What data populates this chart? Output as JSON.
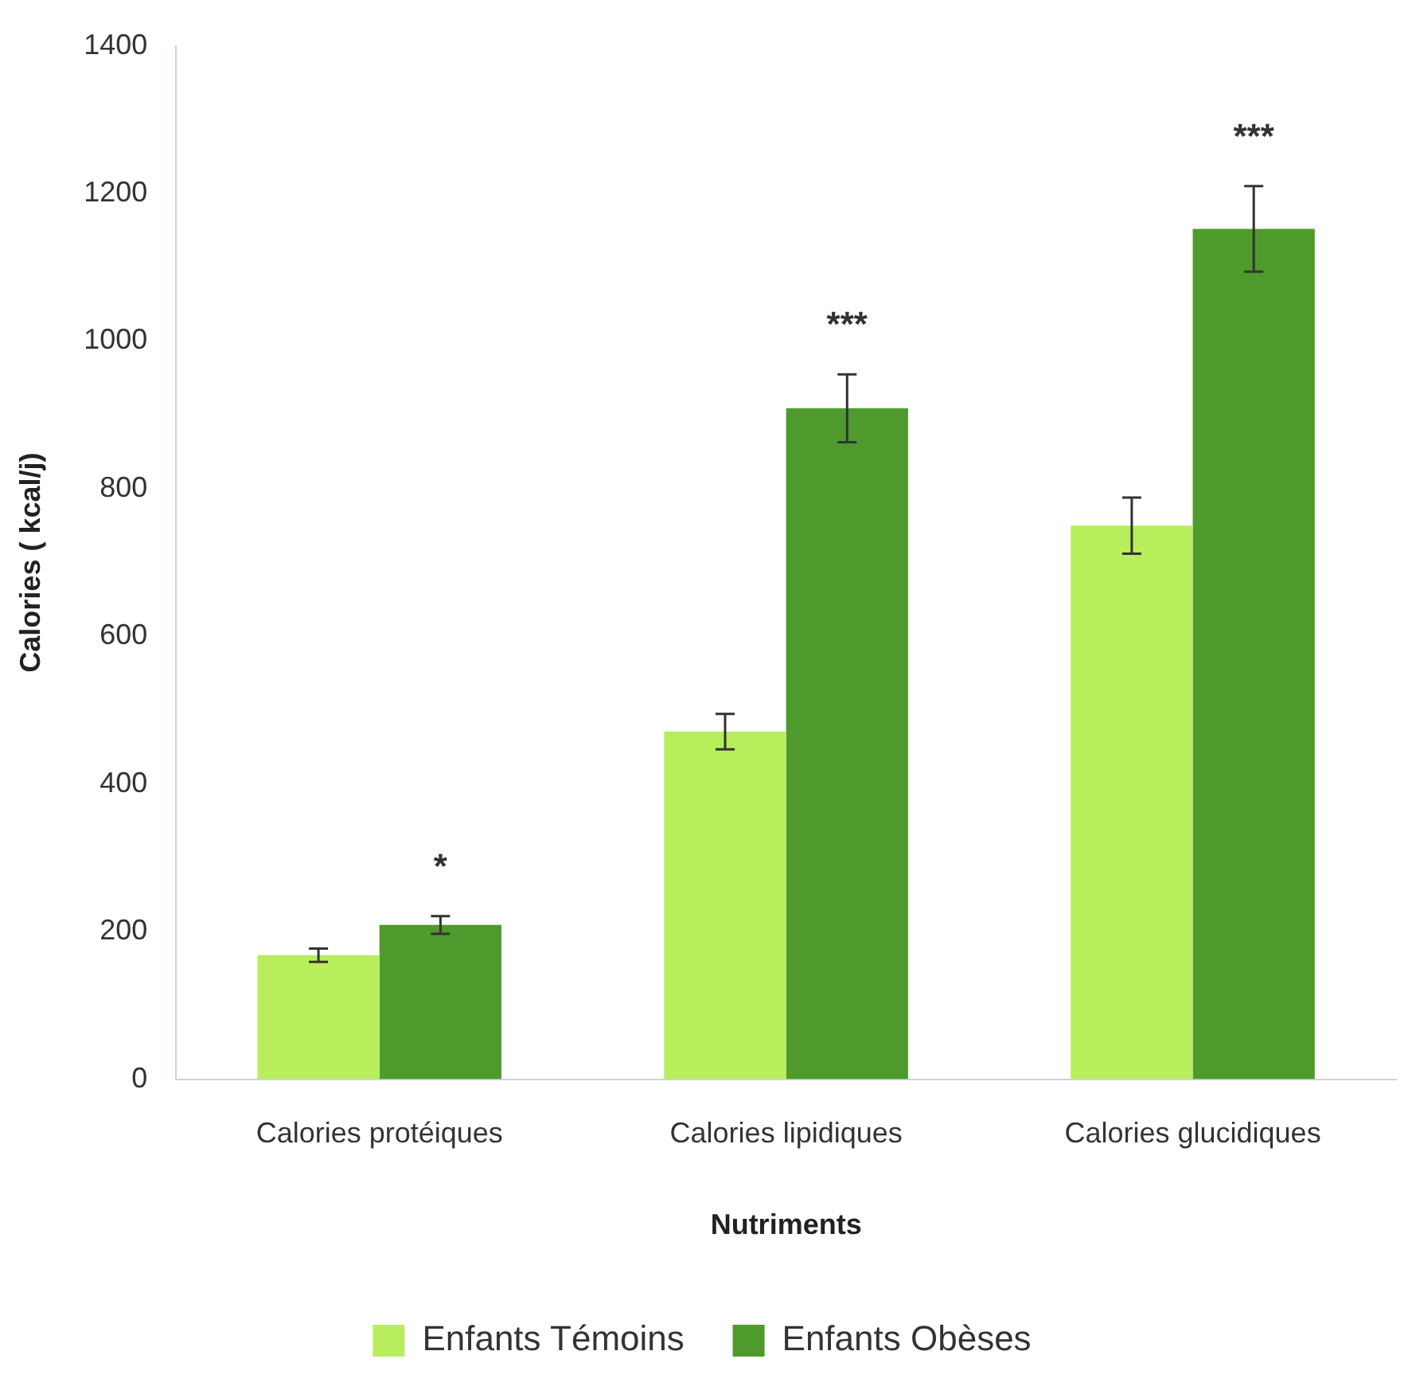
{
  "chart_data": {
    "type": "bar",
    "xlabel": "Nutriments",
    "ylabel": "Calories ( kcal/j)",
    "categories": [
      "Calories protéiques",
      "Calories lipidiques",
      "Calories glucidiques"
    ],
    "series": [
      {
        "name": "Enfants Témoins",
        "color": "#b8ee5c",
        "values": [
          168,
          471,
          750
        ],
        "errors": [
          9,
          24,
          38
        ]
      },
      {
        "name": "Enfants Obèses",
        "color": "#4f9a2c",
        "values": [
          209,
          909,
          1152
        ],
        "errors": [
          12,
          46,
          58
        ]
      }
    ],
    "ylim": [
      0,
      1400
    ],
    "yticks": [
      0,
      200,
      400,
      600,
      800,
      1000,
      1200,
      1400
    ],
    "grid": false,
    "legend": "bottom",
    "annotations": [
      "*",
      "***",
      "***"
    ]
  }
}
